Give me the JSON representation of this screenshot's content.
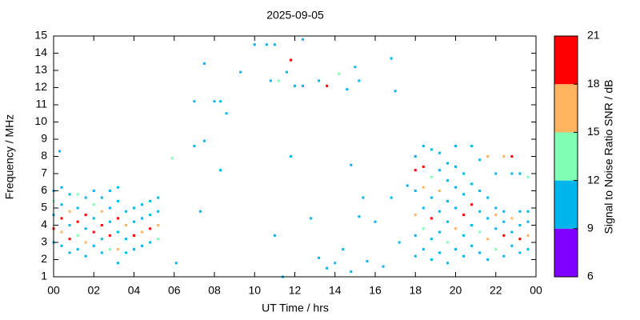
{
  "chart_data": {
    "type": "scatter",
    "title": "2025-09-05",
    "xlabel": "UT Time / hrs",
    "ylabel": "Frequency / MHz",
    "xlim": [
      0,
      24
    ],
    "xticks": [
      {
        "value": 0,
        "label": "00"
      },
      {
        "value": 2,
        "label": "02"
      },
      {
        "value": 4,
        "label": "04"
      },
      {
        "value": 6,
        "label": "06"
      },
      {
        "value": 8,
        "label": "08"
      },
      10,
      12,
      14,
      16,
      18,
      20,
      22,
      {
        "value": 24,
        "label": "00"
      }
    ],
    "ylim": [
      1,
      15
    ],
    "yticks": [
      1,
      2,
      3,
      4,
      5,
      6,
      7,
      8,
      9,
      10,
      11,
      12,
      13,
      14,
      15
    ],
    "colorbar_label": "Signal to Noise Ratio SNR / dB",
    "clim": [
      6,
      21
    ],
    "cticks": [
      6,
      9,
      12,
      15,
      18,
      21
    ],
    "colors": [
      "#8000ff",
      "#00b4ec",
      "#80ffb4",
      "#ffb460",
      "#ff0000"
    ],
    "x": [
      0,
      0,
      0,
      0,
      0,
      0.4,
      0.4,
      0.4,
      0.4,
      0.4,
      0.8,
      0.8,
      0.8,
      0.8,
      0.8,
      1.2,
      1.2,
      1.2,
      1.2,
      1.2,
      1.6,
      1.6,
      1.6,
      1.6,
      1.6,
      2,
      2,
      2,
      2,
      2,
      2.4,
      2.4,
      2.4,
      2.4,
      2.4,
      2.8,
      2.8,
      2.8,
      2.8,
      2.8,
      3.2,
      3.2,
      3.2,
      3.2,
      3.2,
      3.2,
      3.6,
      3.6,
      3.6,
      3.6,
      4,
      4,
      4,
      4,
      4.4,
      4.4,
      4.4,
      4.4,
      4.8,
      4.8,
      4.8,
      4.8,
      5.2,
      5.2,
      5.2,
      5.2,
      0.3,
      5.9,
      6.1,
      7,
      7,
      7.3,
      7.5,
      7.5,
      8,
      8.3,
      8.3,
      8.6,
      9.3,
      10,
      10.6,
      11,
      10.8,
      11.2,
      11.6,
      11.8,
      11.8,
      12,
      12.4,
      12.4,
      13.2,
      13.6,
      14.2,
      14.6,
      15,
      15.2,
      14.8,
      16.8,
      17,
      11,
      11.4,
      13.2,
      13.6,
      14,
      14.4,
      14.8,
      15.2,
      15.4,
      15.6,
      16,
      16.4,
      16.8,
      17.2,
      17.6,
      12.8,
      18,
      18,
      18,
      18,
      18,
      18,
      18.4,
      18.4,
      18.4,
      18.4,
      18.4,
      18.4,
      18.8,
      18.8,
      18.8,
      18.8,
      18.8,
      18.8,
      19.2,
      19.2,
      19.2,
      19.2,
      19.2,
      19.2,
      19.6,
      19.6,
      19.6,
      19.6,
      19.6,
      19.6,
      20,
      20,
      20,
      20,
      20,
      20,
      20.4,
      20.4,
      20.4,
      20.4,
      20.4,
      20.8,
      20.8,
      20.8,
      20.8,
      20.8,
      21.2,
      21.2,
      21.2,
      21.2,
      21.2,
      21.6,
      21.6,
      21.6,
      21.6,
      21.6,
      22,
      22,
      22,
      22,
      22,
      22.4,
      22.4,
      22.4,
      22.4,
      22.4,
      22.8,
      22.8,
      22.8,
      22.8,
      22.8,
      23.2,
      23.2,
      23.2,
      23.2,
      23.2,
      23.6,
      23.6,
      23.6,
      23.6,
      23.6
    ],
    "y": [
      3,
      3.8,
      4.6,
      5.4,
      6,
      2.8,
      3.6,
      4.4,
      5.2,
      6.2,
      2.4,
      3.2,
      4,
      4.8,
      5.8,
      2.6,
      3.4,
      4.2,
      5,
      5.8,
      2.2,
      3,
      3.8,
      4.6,
      5.6,
      2.8,
      3.6,
      4.4,
      5.2,
      6,
      2.4,
      3.2,
      4,
      4.8,
      5.6,
      2.6,
      3.4,
      4.2,
      5,
      6,
      1.8,
      2.6,
      3.6,
      4.4,
      5.4,
      6.2,
      2.4,
      3.2,
      4,
      4.8,
      2.6,
      3.4,
      4.2,
      5,
      2.8,
      3.6,
      4.4,
      5.2,
      3,
      3.8,
      4.6,
      5.4,
      3.2,
      4,
      4.8,
      5.6,
      8.3,
      7.9,
      1.8,
      11.2,
      8.6,
      4.8,
      13.4,
      8.9,
      11.2,
      11.2,
      7.2,
      10.5,
      12.9,
      14.5,
      14.5,
      14.5,
      12.4,
      12.4,
      12.9,
      13.6,
      8,
      12.1,
      14.8,
      12.1,
      12.4,
      12.1,
      12.8,
      11.9,
      13.2,
      12.4,
      7.5,
      13.7,
      11.8,
      3.4,
      1,
      2.1,
      1.5,
      1.8,
      2.6,
      1.3,
      4.5,
      5.6,
      1.9,
      4.2,
      1.6,
      5.6,
      3,
      6.3,
      4.4,
      2.2,
      3.4,
      4.6,
      6,
      7.2,
      8,
      2.6,
      3.8,
      5,
      6.2,
      7.4,
      8.6,
      2,
      3.2,
      4.4,
      5.6,
      6.8,
      8.4,
      2.4,
      3.6,
      4.8,
      6,
      7.2,
      8.2,
      1.8,
      3,
      4.2,
      5.4,
      6.6,
      7.6,
      2.6,
      3.8,
      5,
      6.2,
      7.4,
      8.6,
      2.2,
      3.4,
      4.6,
      5.8,
      7,
      2.8,
      4,
      5.2,
      6.4,
      8.6,
      2.4,
      3.6,
      4.8,
      6,
      7.8,
      2,
      3.2,
      4.4,
      5.6,
      8,
      2.6,
      3.8,
      4.6,
      5,
      7,
      2.2,
      3.4,
      4.2,
      4.8,
      8,
      2.8,
      3.6,
      4.4,
      7,
      8,
      2.4,
      3.2,
      4,
      4.8,
      7,
      2.6,
      3.4,
      4.2,
      4.8,
      6.8
    ],
    "snr": [
      10,
      19,
      10,
      13,
      10,
      10,
      16,
      19,
      10,
      10,
      10,
      19,
      10,
      16,
      10,
      10,
      13,
      19,
      10,
      13,
      10,
      16,
      10,
      19,
      10,
      10,
      19,
      10,
      13,
      10,
      10,
      10,
      19,
      16,
      10,
      13,
      19,
      10,
      10,
      10,
      10,
      16,
      10,
      19,
      10,
      10,
      10,
      10,
      16,
      10,
      10,
      19,
      10,
      10,
      10,
      16,
      10,
      10,
      10,
      19,
      10,
      10,
      13,
      16,
      10,
      10,
      10,
      13,
      10,
      10,
      10,
      10,
      10,
      10,
      10,
      10,
      10,
      10,
      10,
      10,
      10,
      10,
      10,
      13,
      10,
      19,
      10,
      10,
      10,
      10,
      10,
      19,
      13,
      10,
      10,
      10,
      10,
      10,
      10,
      10,
      10,
      10,
      10,
      10,
      10,
      10,
      10,
      10,
      10,
      10,
      10,
      10,
      10,
      10,
      10,
      10,
      10,
      16,
      10,
      19,
      10,
      10,
      13,
      10,
      16,
      19,
      10,
      10,
      10,
      19,
      10,
      13,
      10,
      10,
      10,
      10,
      16,
      10,
      10,
      10,
      13,
      10,
      10,
      10,
      10,
      10,
      16,
      10,
      10,
      10,
      10,
      10,
      10,
      19,
      10,
      10,
      10,
      10,
      19,
      10,
      10,
      10,
      13,
      10,
      10,
      10,
      10,
      16,
      10,
      10,
      16,
      13,
      10,
      16,
      10,
      10,
      10,
      19,
      10,
      10,
      16,
      10,
      10,
      16,
      10,
      19,
      10,
      19,
      10,
      10,
      10,
      10,
      16,
      10,
      10,
      13
    ]
  }
}
